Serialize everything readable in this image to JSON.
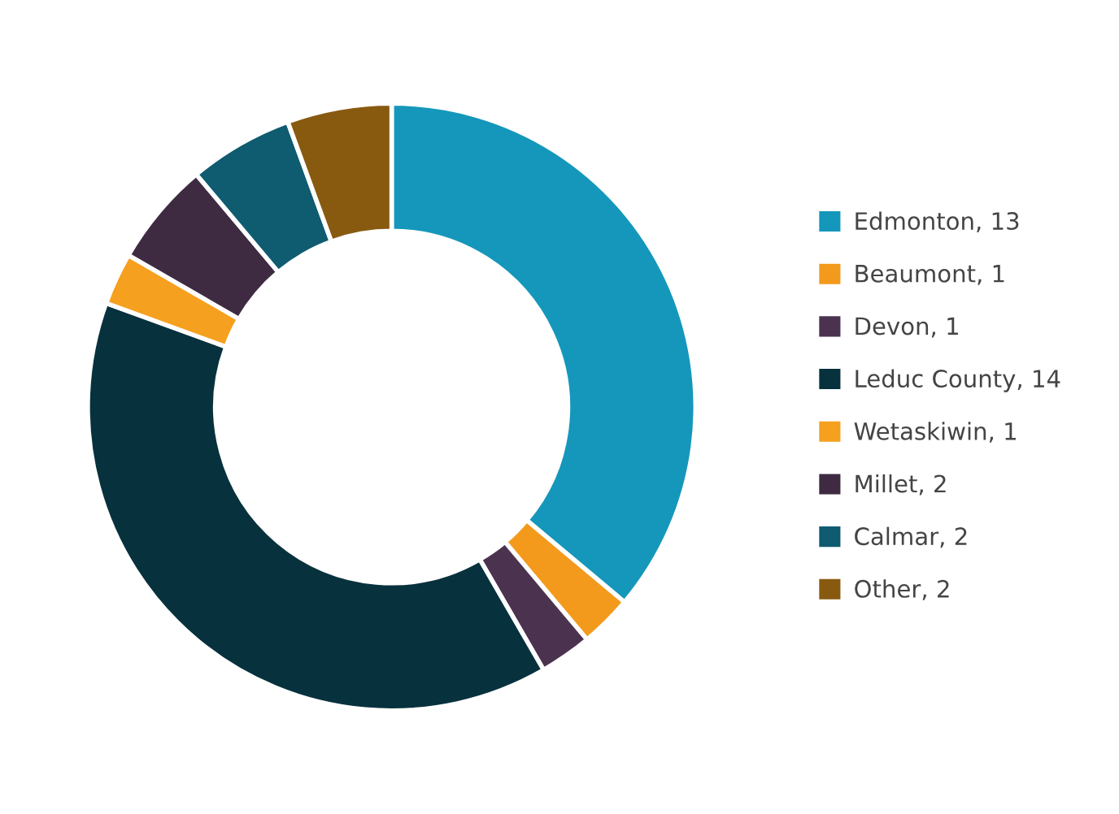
{
  "chart_data": {
    "type": "donut",
    "categories": [
      "Edmonton, 13",
      "Beaumont, 1",
      "Devon, 1",
      "Leduc County, 14",
      "Wetaskiwin, 1",
      "Millet, 2",
      "Calmar, 2",
      "Other, 2"
    ],
    "values": [
      13,
      1,
      1,
      14,
      1,
      2,
      2,
      2
    ],
    "colors": [
      "#1597bb",
      "#f39a1c",
      "#4b3350",
      "#07313d",
      "#f5a01e",
      "#3e2b42",
      "#0f5b70",
      "#885a10"
    ],
    "legend": "right"
  }
}
